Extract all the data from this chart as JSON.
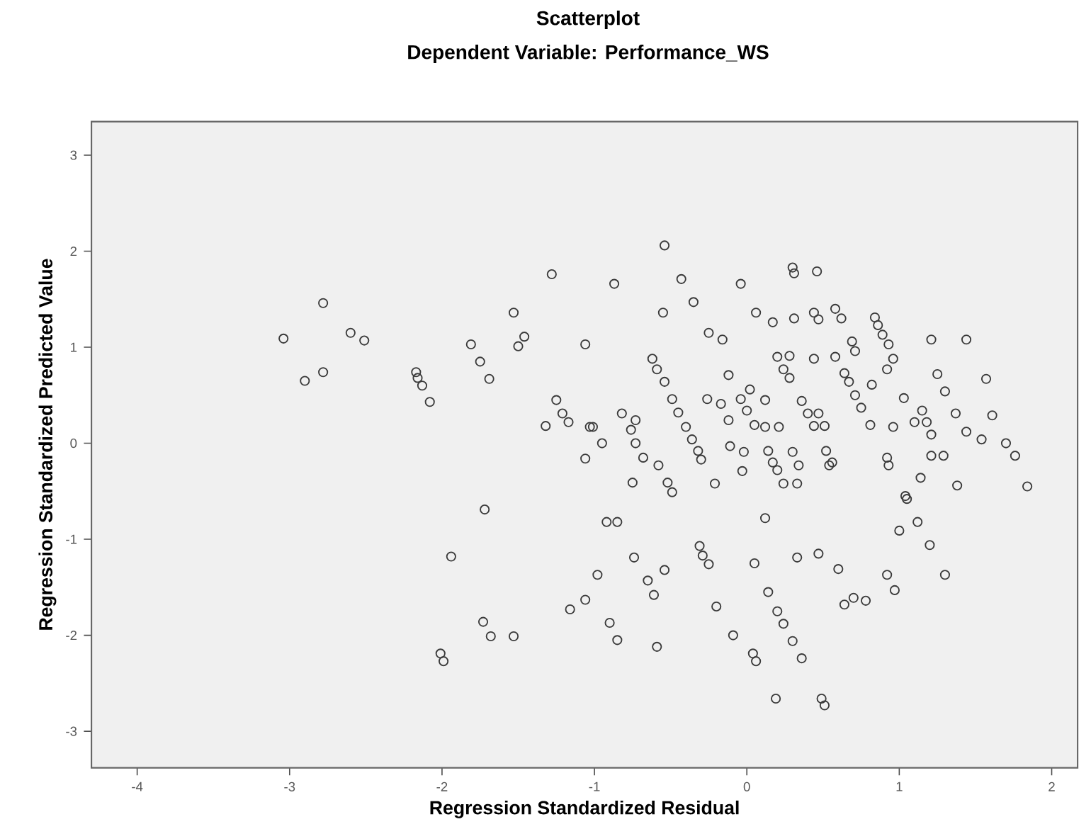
{
  "chart_data": {
    "type": "scatter",
    "title": "Scatterplot",
    "subtitle": "Dependent Variable: Performance_WS",
    "xlabel": "Regression Standardized Residual",
    "ylabel": "Regression Standardized Predicted Value",
    "xlim": [
      -4.3,
      2.17
    ],
    "ylim": [
      -3.38,
      3.35
    ],
    "xticks": [
      -4,
      -3,
      -2,
      -1,
      0,
      1,
      2
    ],
    "yticks": [
      -3,
      -2,
      -1,
      0,
      1,
      2,
      3
    ],
    "grid": false,
    "marker": "circle",
    "series": [
      {
        "color": "#3a3a3a",
        "x": [
          -3.04,
          -2.78,
          -2.9,
          -2.78,
          -2.6,
          -2.51,
          -2.17,
          -2.16,
          -2.13,
          -2.08,
          -1.81,
          -1.75,
          -1.69,
          -1.53,
          -1.46,
          -1.5,
          -1.28,
          -1.06,
          -1.25,
          -1.21,
          -1.17,
          -1.32,
          -1.03,
          -1.06,
          -1.72,
          -1.94,
          -1.16,
          -1.06,
          -1.73,
          -1.68,
          -1.53,
          -2.01,
          -1.99,
          -0.54,
          -0.87,
          -0.43,
          -0.04,
          0.3,
          0.31,
          0.46,
          -0.55,
          -0.35,
          0.06,
          0.17,
          0.31,
          0.44,
          0.47,
          0.58,
          0.62,
          0.84,
          0.86,
          0.89,
          0.93,
          0.96,
          0.92,
          1.21,
          1.44,
          -0.25,
          -0.16,
          -0.62,
          -0.59,
          -0.54,
          -0.49,
          -0.45,
          -0.4,
          -0.36,
          -0.32,
          -0.3,
          -0.12,
          -0.26,
          -0.17,
          -0.12,
          -0.11,
          -0.02,
          -0.03,
          -0.21,
          0.02,
          -0.04,
          0.0,
          0.05,
          0.12,
          0.12,
          0.21,
          0.14,
          0.17,
          0.2,
          0.3,
          0.34,
          0.24,
          0.33,
          0.2,
          0.28,
          0.24,
          0.28,
          0.44,
          0.36,
          0.4,
          0.47,
          0.44,
          0.51,
          0.52,
          0.56,
          0.58,
          0.69,
          0.71,
          0.64,
          0.67,
          0.71,
          0.75,
          0.82,
          0.81,
          0.96,
          1.03,
          0.92,
          0.93,
          1.14,
          1.25,
          1.3,
          1.37,
          1.44,
          1.54,
          1.57,
          1.61,
          1.7,
          1.76,
          1.84,
          1.38,
          1.15,
          1.18,
          1.21,
          1.21,
          1.29,
          1.1,
          -1.01,
          -0.95,
          -0.82,
          -0.73,
          -0.76,
          -0.73,
          -0.68,
          -0.58,
          -0.75,
          -0.52,
          -0.49,
          1.04,
          0.54,
          1.05,
          -0.92,
          -0.85,
          0.12,
          1.12,
          1.0,
          1.2,
          1.3,
          0.92,
          0.97,
          -0.74,
          -0.98,
          -0.65,
          -0.54,
          -0.61,
          -0.9,
          -0.85,
          -0.59,
          -0.31,
          -0.29,
          -0.25,
          0.05,
          0.33,
          0.47,
          0.6,
          0.14,
          0.2,
          0.24,
          0.3,
          0.36,
          -0.2,
          -0.09,
          0.04,
          0.06,
          0.64,
          0.7,
          0.78,
          0.19,
          0.49,
          0.51
        ],
        "values": [
          1.09,
          1.46,
          0.65,
          0.74,
          1.15,
          1.07,
          0.74,
          0.68,
          0.6,
          0.43,
          1.03,
          0.85,
          0.67,
          1.36,
          1.11,
          1.01,
          1.76,
          1.03,
          0.45,
          0.31,
          0.22,
          0.18,
          0.17,
          -0.16,
          -0.69,
          -1.18,
          -1.73,
          -1.63,
          -1.86,
          -2.01,
          -2.01,
          -2.19,
          -2.27,
          2.06,
          1.66,
          1.71,
          1.66,
          1.83,
          1.77,
          1.79,
          1.36,
          1.47,
          1.36,
          1.26,
          1.3,
          1.36,
          1.29,
          1.4,
          1.3,
          1.31,
          1.23,
          1.13,
          1.03,
          0.88,
          0.77,
          1.08,
          1.08,
          1.15,
          1.08,
          0.88,
          0.77,
          0.64,
          0.46,
          0.32,
          0.17,
          0.04,
          -0.08,
          -0.17,
          0.71,
          0.46,
          0.41,
          0.24,
          -0.03,
          -0.09,
          -0.29,
          -0.42,
          0.56,
          0.46,
          0.34,
          0.19,
          0.45,
          0.17,
          0.17,
          -0.08,
          -0.2,
          -0.28,
          -0.09,
          -0.23,
          -0.42,
          -0.42,
          0.9,
          0.91,
          0.77,
          0.68,
          0.88,
          0.44,
          0.31,
          0.31,
          0.18,
          0.18,
          -0.08,
          -0.2,
          0.9,
          1.06,
          0.96,
          0.73,
          0.64,
          0.5,
          0.37,
          0.61,
          0.19,
          0.17,
          0.47,
          -0.15,
          -0.23,
          -0.36,
          0.72,
          0.54,
          0.31,
          0.12,
          0.04,
          0.67,
          0.29,
          0.0,
          -0.13,
          -0.45,
          -0.44,
          0.34,
          0.22,
          0.09,
          -0.13,
          -0.13,
          0.22,
          0.17,
          0.0,
          0.31,
          0.24,
          0.14,
          0.0,
          -0.15,
          -0.23,
          -0.41,
          -0.41,
          -0.51,
          -0.55,
          -0.23,
          -0.58,
          -0.82,
          -0.82,
          -0.78,
          -0.82,
          -0.91,
          -1.06,
          -1.37,
          -1.37,
          -1.53,
          -1.19,
          -1.37,
          -1.43,
          -1.32,
          -1.58,
          -1.87,
          -2.05,
          -2.12,
          -1.07,
          -1.17,
          -1.26,
          -1.25,
          -1.19,
          -1.15,
          -1.31,
          -1.55,
          -1.75,
          -1.88,
          -2.06,
          -2.24,
          -1.7,
          -2.0,
          -2.19,
          -2.27,
          -1.68,
          -1.61,
          -1.64,
          -2.66,
          -2.66,
          -2.73
        ]
      }
    ]
  }
}
